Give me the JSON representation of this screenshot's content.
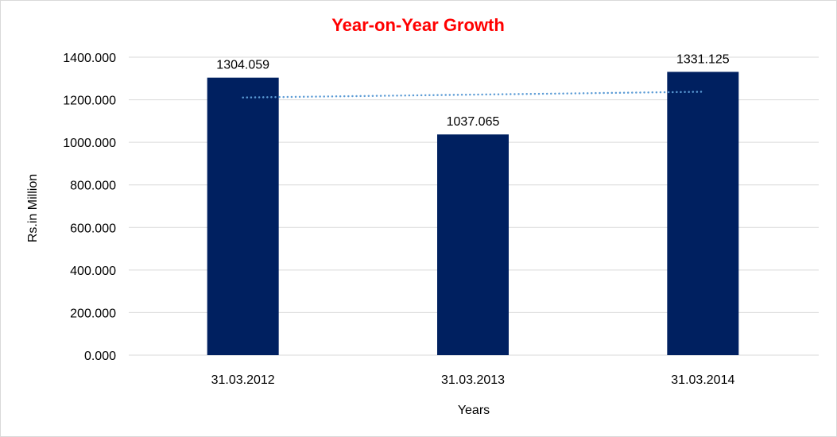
{
  "chart_data": {
    "type": "bar",
    "title": "Year-on-Year Growth",
    "xlabel": "Years",
    "ylabel": "Rs.in Million",
    "categories": [
      "31.03.2012",
      "31.03.2013",
      "31.03.2014"
    ],
    "values": [
      1304.059,
      1037.065,
      1331.125
    ],
    "data_labels": [
      "1304.059",
      "1037.065",
      "1331.125"
    ],
    "ylim": [
      0,
      1400
    ],
    "yticks": [
      "0.000",
      "200.000",
      "400.000",
      "600.000",
      "800.000",
      "1000.000",
      "1200.000",
      "1400.000"
    ],
    "grid": true,
    "trendline": "linear",
    "colors": {
      "bar": "#002060",
      "trend": "#5b9bd5",
      "title": "#ff0000",
      "grid": "#d9d9d9"
    }
  }
}
